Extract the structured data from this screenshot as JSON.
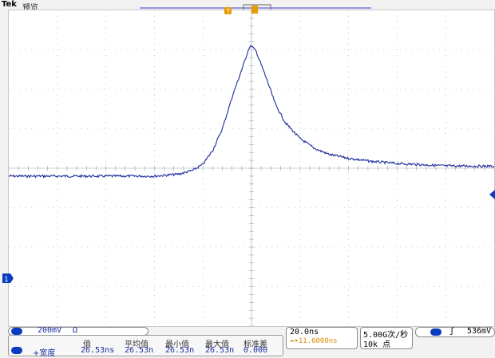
{
  "header": {
    "brand": "Tek",
    "mode": "预览"
  },
  "channel": {
    "number": "1",
    "scale": "200mV",
    "coupling": "Ω"
  },
  "trigger": {
    "marker": "T",
    "level": "536mV",
    "slope_symbol": "ʃ"
  },
  "timebase": {
    "scale": "20.0ns",
    "position": "↠▾11.6000ns"
  },
  "acquisition": {
    "rate": "5.00G次/秒",
    "record": "10k 点"
  },
  "measurement": {
    "channel": "1",
    "name": "+宽度",
    "headers": [
      "值",
      "平均值",
      "最小值",
      "最大值",
      "标准差"
    ],
    "values": [
      "26.53ns",
      "26.53n",
      "26.53n",
      "26.53n",
      "0.000"
    ]
  },
  "colors": {
    "trace": "#1b2a9a",
    "trigger": "#e89a00",
    "grid": "#9aa0b0"
  },
  "chart_data": {
    "type": "line",
    "xlabel": "",
    "ylabel": "",
    "x_divisions": 10,
    "y_divisions": 8,
    "series": [
      {
        "points": [
          [
            -5.0,
            -0.2
          ],
          [
            -4.0,
            -0.2
          ],
          [
            -3.0,
            -0.2
          ],
          [
            -2.0,
            -0.2
          ],
          [
            -1.5,
            -0.15
          ],
          [
            -1.2,
            -0.05
          ],
          [
            -1.0,
            0.1
          ],
          [
            -0.8,
            0.45
          ],
          [
            -0.6,
            1.0
          ],
          [
            -0.4,
            1.8
          ],
          [
            -0.2,
            2.5
          ],
          [
            -0.05,
            3.05
          ],
          [
            0.0,
            3.1
          ],
          [
            0.1,
            2.95
          ],
          [
            0.3,
            2.3
          ],
          [
            0.5,
            1.6
          ],
          [
            0.7,
            1.15
          ],
          [
            1.0,
            0.75
          ],
          [
            1.3,
            0.5
          ],
          [
            1.6,
            0.35
          ],
          [
            2.0,
            0.25
          ],
          [
            2.5,
            0.17
          ],
          [
            3.0,
            0.12
          ],
          [
            4.0,
            0.06
          ],
          [
            5.0,
            0.05
          ]
        ]
      }
    ]
  }
}
